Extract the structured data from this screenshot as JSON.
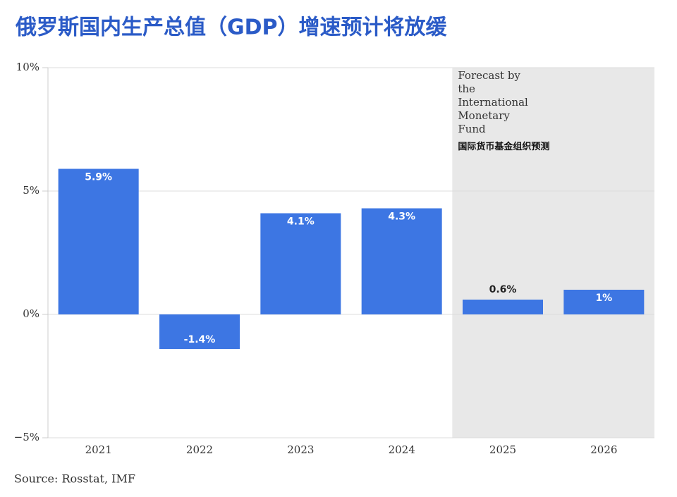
{
  "chart_data": {
    "type": "bar",
    "title": "俄罗斯国内生产总值（GDP）增速预计将放缓",
    "categories": [
      "2021",
      "2022",
      "2023",
      "2024",
      "2025",
      "2026"
    ],
    "values": [
      5.9,
      -1.4,
      4.1,
      4.3,
      0.6,
      1
    ],
    "value_labels": [
      "5.9%",
      "-1.4%",
      "4.1%",
      "4.3%",
      "0.6%",
      "1%"
    ],
    "color": "#3d76e3",
    "ylim": [
      -5,
      10
    ],
    "yticks": [
      {
        "value": -5,
        "label": "−5%"
      },
      {
        "value": 0,
        "label": "0%"
      },
      {
        "value": 5,
        "label": "5%"
      },
      {
        "value": 10,
        "label": "10%"
      }
    ],
    "grid": true,
    "annotations": [
      "Forecast by the International Monetary Fund",
      "国际货币基金组织预测"
    ],
    "source": "Source: Rosstat, IMF"
  }
}
